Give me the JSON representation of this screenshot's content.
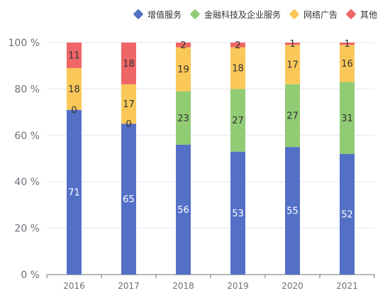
{
  "chart_data": {
    "type": "bar",
    "stacked": true,
    "categories": [
      "2016",
      "2017",
      "2018",
      "2019",
      "2020",
      "2021"
    ],
    "series": [
      {
        "name": "增值服务",
        "color": "#5470c6",
        "values": [
          71,
          65,
          56,
          53,
          55,
          52
        ],
        "labels": [
          "71",
          "65",
          "56",
          "53",
          "55",
          "52"
        ]
      },
      {
        "name": "金融科技及企业服务",
        "color": "#91cc75",
        "values": [
          0,
          0,
          23,
          27,
          27,
          31
        ],
        "labels": [
          "0",
          "0",
          "23",
          "27",
          "27",
          "31"
        ]
      },
      {
        "name": "网络广告",
        "color": "#fac858",
        "values": [
          18,
          17,
          19,
          18,
          17,
          16
        ],
        "labels": [
          "18",
          "17",
          "19",
          "18",
          "17",
          "16"
        ]
      },
      {
        "name": "其他",
        "color": "#ee6666",
        "values": [
          11,
          18,
          2,
          2,
          1,
          1
        ],
        "labels": [
          "11",
          "18",
          "2",
          "2",
          "1",
          "1"
        ]
      }
    ],
    "ylim": [
      0,
      100
    ],
    "yticks": [
      0,
      20,
      40,
      60,
      80,
      100
    ],
    "ytick_labels": [
      "0 %",
      "20 %",
      "40 %",
      "60 %",
      "80 %",
      "100 %"
    ],
    "grid": true,
    "legend_position": "top-right"
  }
}
